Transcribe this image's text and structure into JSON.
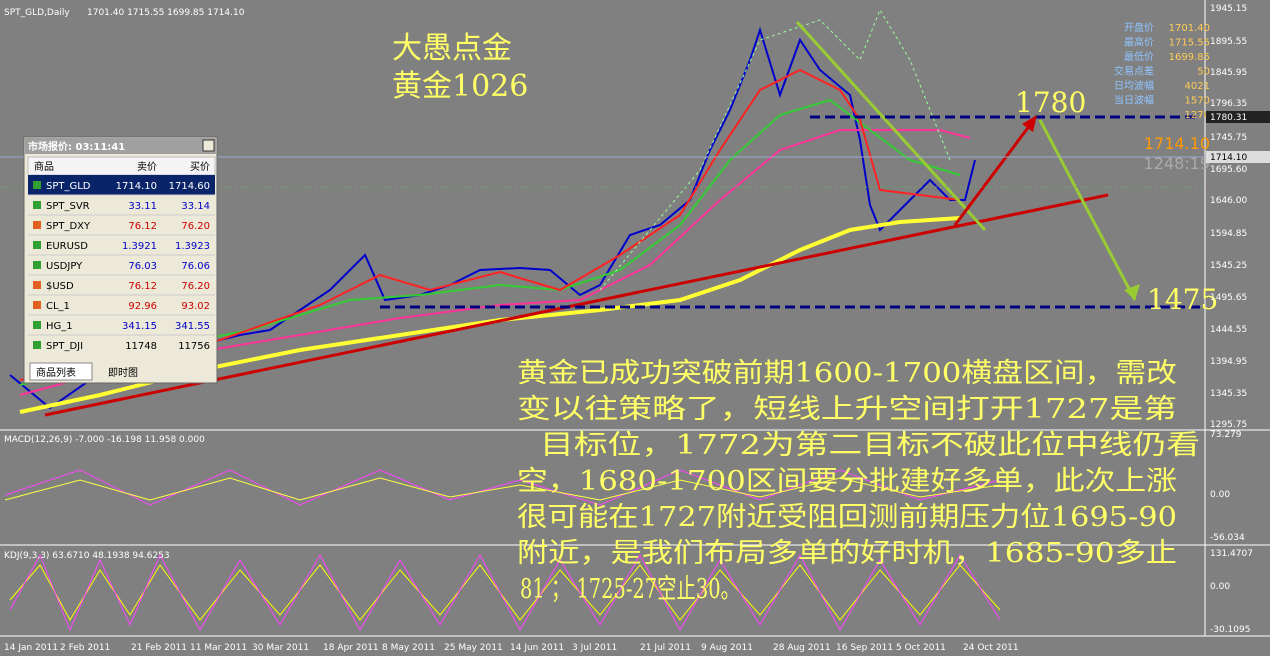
{
  "header": {
    "symbol": "SPT_GLD,Daily",
    "ohlc": "1701.40 1715.55 1699.85 1714.10"
  },
  "title": [
    "大愚点金",
    "黄金1026"
  ],
  "info_panel": [
    {
      "label": "开盘价",
      "value": "1701.40"
    },
    {
      "label": "最高价",
      "value": "1715.55"
    },
    {
      "label": "最低价",
      "value": "1699.85"
    },
    {
      "label": "交易点差",
      "value": "50"
    },
    {
      "label": "日均波幅",
      "value": "4021"
    },
    {
      "label": "当日波幅",
      "value": "1570"
    },
    {
      "value": "1270"
    }
  ],
  "price_labels": {
    "current": "1714.10",
    "timer": "1248:19"
  },
  "levels": [
    "1780",
    "1475"
  ],
  "price_axis": [
    "1945.15",
    "1895.55",
    "1845.95",
    "1796.35",
    "1780.31",
    "1745.75",
    "1714.10",
    "1695.60",
    "1646.00",
    "1594.85",
    "1545.25",
    "1495.65",
    "1444.55",
    "1394.95",
    "1345.35",
    "1295.75"
  ],
  "date_axis": [
    "14 Jan 2011",
    "2 Feb 2011",
    "21 Feb 2011",
    "11 Mar 2011",
    "30 Mar 2011",
    "18 Apr 2011",
    "8 May 2011",
    "25 May 2011",
    "14 Jun 2011",
    "3 Jul 2011",
    "21 Jul 2011",
    "9 Aug 2011",
    "28 Aug 2011",
    "16 Sep 2011",
    "5 Oct 2011",
    "24 Oct 2011"
  ],
  "market_watch": {
    "title": "市场报价: 03:11:41",
    "columns": [
      "商品",
      "卖价",
      "买价"
    ],
    "rows": [
      [
        "SPT_GLD",
        "1714.10",
        "1714.60"
      ],
      [
        "SPT_SVR",
        "33.11",
        "33.14"
      ],
      [
        "SPT_DXY",
        "76.12",
        "76.20"
      ],
      [
        "EURUSD",
        "1.3921",
        "1.3923"
      ],
      [
        "USDJPY",
        "76.03",
        "76.06"
      ],
      [
        "$USD",
        "76.12",
        "76.20"
      ],
      [
        "CL_1",
        "92.96",
        "93.02"
      ],
      [
        "HG_1",
        "341.15",
        "341.55"
      ],
      [
        "SPT_DJI",
        "11748",
        "11756"
      ]
    ],
    "tabs": [
      "商品列表",
      "即时图"
    ]
  },
  "macd": {
    "label": "MACD(12,26,9) -7.000 -16.198 11.958 0.000",
    "axis": [
      "73.279",
      "0.00",
      "-56.034"
    ]
  },
  "kdj": {
    "label": "KDJ(9,3,3) 63.6710 48.1938 94.6253",
    "axis": [
      "131.4707",
      "0.00",
      "-30.1095"
    ]
  },
  "commentary": [
    "黄金已成功突破前期1600-1700横盘区间，需改",
    "变以往策略了，短线上升空间打开1727是第",
    "目标位，1772为第二目标不破此位中线仍看",
    "空，1680-1700区间要分批建好多单，此次上涨",
    "很可能在1727附近受阻回测前期压力位1695-90",
    "附近，是我们布局多单的好时机，1685-90多止",
    "81 ； 1725-27空止30。"
  ]
}
